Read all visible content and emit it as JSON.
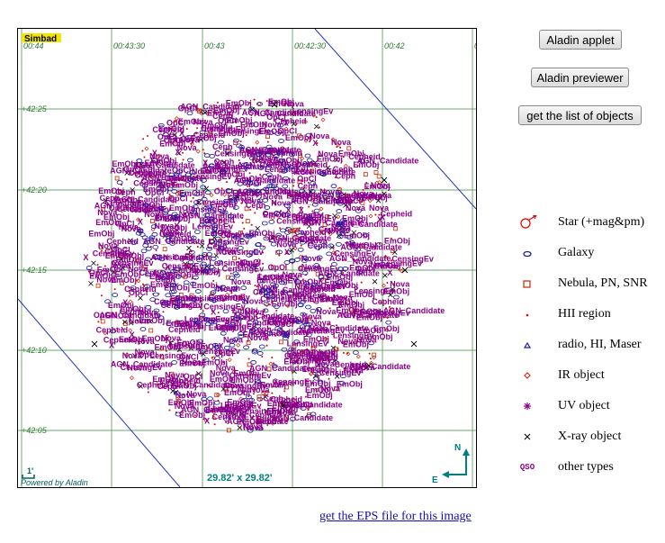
{
  "buttons": {
    "applet": "Aladin applet",
    "previewer": "Aladin previewer",
    "list": "get the list of objects"
  },
  "map": {
    "badge": "Simbad",
    "ra_ticks": [
      "00:44",
      "00:43:30",
      "00:43",
      "00:42:30",
      "00:42",
      "0"
    ],
    "dec_ticks": [
      "+42:25",
      "+42:20",
      "+42:15",
      "+42:10",
      "+42:05"
    ],
    "fov": "29.82' x 29.82'",
    "scale_label": "1'",
    "powered_by": "Powered by Aladin",
    "compass": {
      "north": "N",
      "east": "E"
    },
    "label_samples": [
      "EmObj",
      "Nova",
      "Cepheid",
      "OpCl",
      "Nova",
      "EmObj",
      "CensingEv",
      "LensingEv",
      "AGN_Candidate",
      "EmObj",
      "Nova",
      "X",
      "EmObj",
      "Nova",
      "Ceph",
      "EmObj"
    ],
    "colors": {
      "grid": "#3c8c3c",
      "labels": "#8b008b",
      "stars": "#dd0000",
      "ir": "#cc2200",
      "galaxy": "#1a1aa0",
      "xray": "#000000",
      "line": "#2233bb"
    }
  },
  "legend": [
    {
      "label": "Star (+mag&pm)",
      "icon": "star-pm-icon"
    },
    {
      "label": "Galaxy",
      "icon": "galaxy-ellipse-icon"
    },
    {
      "label": "Nebula, PN, SNR",
      "icon": "nebula-square-icon"
    },
    {
      "label": "HII region",
      "icon": "hii-dot-icon"
    },
    {
      "label": "radio, HI, Maser",
      "icon": "radio-triangle-icon"
    },
    {
      "label": "IR object",
      "icon": "ir-diamond-icon"
    },
    {
      "label": "UV object",
      "icon": "uv-asterisk-icon"
    },
    {
      "label": "X-ray object",
      "icon": "xray-cross-icon"
    },
    {
      "label": "other types",
      "icon": "qso-text-icon",
      "icon_text": "QSO"
    }
  ],
  "eps_link": "get the EPS file for this image"
}
